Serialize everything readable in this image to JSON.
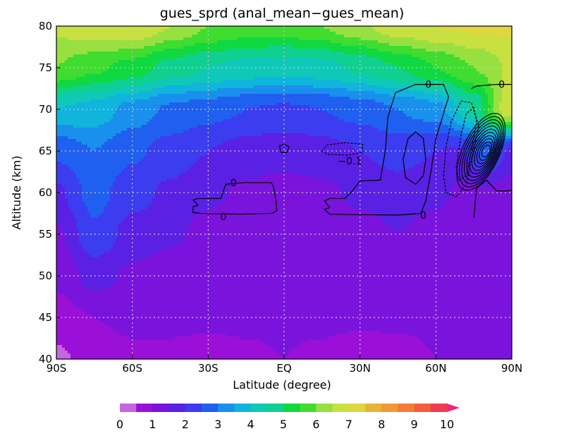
{
  "chart_data": {
    "type": "heatmap",
    "title": "gues_sprd (anal_mean−gues_mean)",
    "xlabel": "Latitude (degree)",
    "ylabel": "Altitude (km)",
    "xlim": [
      -90,
      90
    ],
    "ylim": [
      40,
      80
    ],
    "x_ticks": [
      -90,
      -60,
      -30,
      0,
      30,
      60,
      90
    ],
    "x_tick_labels": [
      "90S",
      "60S",
      "30S",
      "EQ",
      "30N",
      "60N",
      "90N"
    ],
    "y_ticks": [
      40,
      45,
      50,
      55,
      60,
      65,
      70,
      75,
      80
    ],
    "y_tick_labels": [
      "40",
      "45",
      "50",
      "55",
      "60",
      "65",
      "70",
      "75",
      "80"
    ],
    "grid": true,
    "colorbar": {
      "levels": [
        0,
        0.5,
        1,
        1.5,
        2,
        2.5,
        3,
        3.5,
        4,
        4.5,
        5,
        5.5,
        6,
        6.5,
        7,
        7.5,
        8,
        8.5,
        9,
        9.5,
        10
      ],
      "tick_labels": [
        "0",
        "1",
        "2",
        "3",
        "4",
        "5",
        "6",
        "7",
        "8",
        "9",
        "10"
      ],
      "colors": [
        "#c466e0",
        "#9a10d8",
        "#7a14dc",
        "#5a20e4",
        "#3c3cf0",
        "#2060f0",
        "#1890ec",
        "#10b4dc",
        "#10c8b8",
        "#10d090",
        "#10d840",
        "#40dc30",
        "#98e040",
        "#c8e040",
        "#e0d640",
        "#e8b438",
        "#f09838",
        "#f47c34",
        "#f45c3c",
        "#f03c50",
        "#f02878"
      ],
      "extend": "max",
      "placement": "bottom"
    },
    "field_lat": [
      -90,
      -75,
      -60,
      -45,
      -30,
      -15,
      0,
      15,
      30,
      45,
      60,
      75,
      90
    ],
    "field_alt": [
      40,
      45,
      50,
      55,
      60,
      65,
      70,
      75,
      80
    ],
    "field_values": [
      [
        0.4,
        0.7,
        0.9,
        0.9,
        0.8,
        0.9,
        1.0,
        0.9,
        0.7,
        0.8,
        1.0,
        1.1,
        1.1
      ],
      [
        0.8,
        1.0,
        1.1,
        1.1,
        1.1,
        1.1,
        1.1,
        1.1,
        1.1,
        1.1,
        1.1,
        1.1,
        1.0
      ],
      [
        1.1,
        1.7,
        1.4,
        1.2,
        1.1,
        1.0,
        1.0,
        1.0,
        1.1,
        1.3,
        1.2,
        1.1,
        1.0
      ],
      [
        1.4,
        2.4,
        1.8,
        1.6,
        1.3,
        1.1,
        1.0,
        1.1,
        1.3,
        1.5,
        1.3,
        1.1,
        1.0
      ],
      [
        1.9,
        2.7,
        2.2,
        1.9,
        1.6,
        1.4,
        1.3,
        1.4,
        1.6,
        1.8,
        1.6,
        1.3,
        1.2
      ],
      [
        2.6,
        3.0,
        2.6,
        2.3,
        2.0,
        1.8,
        1.7,
        1.8,
        2.0,
        2.2,
        2.0,
        1.8,
        1.7
      ],
      [
        4.0,
        3.8,
        3.3,
        2.9,
        2.7,
        2.5,
        2.4,
        2.5,
        2.7,
        3.0,
        3.3,
        4.5,
        7.0
      ],
      [
        6.0,
        5.6,
        5.3,
        4.8,
        4.5,
        4.3,
        4.2,
        4.3,
        4.6,
        5.0,
        5.5,
        6.0,
        6.6
      ],
      [
        6.6,
        6.9,
        7.0,
        6.5,
        6.0,
        5.8,
        5.8,
        6.0,
        6.4,
        6.8,
        7.0,
        7.1,
        7.1
      ]
    ],
    "contour_labels": [
      {
        "text": "0",
        "lat": -20,
        "alt": 61.2
      },
      {
        "text": "0",
        "lat": -24,
        "alt": 57.1
      },
      {
        "text": "0",
        "lat": 55,
        "alt": 57.3
      },
      {
        "text": "0",
        "lat": 57,
        "alt": 73.0
      },
      {
        "text": "0",
        "lat": 86,
        "alt": 73.0
      },
      {
        "text": "−0.1",
        "lat": 26,
        "alt": 63.8
      }
    ],
    "contours": [
      {
        "level": "0",
        "style": "solid",
        "path": [
          [
            -36,
            59.1
          ],
          [
            -34,
            59.3
          ],
          [
            -25,
            59.3
          ],
          [
            -24,
            60.2
          ],
          [
            -23,
            61.0
          ],
          [
            -16,
            61.2
          ],
          [
            -5,
            61.2
          ],
          [
            -4,
            60.5
          ],
          [
            -3,
            58.5
          ],
          [
            -3,
            57.8
          ],
          [
            -5,
            57.5
          ],
          [
            -17,
            57.4
          ],
          [
            -33,
            57.5
          ],
          [
            -36,
            57.6
          ],
          [
            -36,
            58.3
          ],
          [
            -34,
            58.5
          ],
          [
            -36,
            59.1
          ]
        ]
      },
      {
        "level": "0",
        "style": "solid",
        "path": [
          [
            18,
            58.2
          ],
          [
            16,
            59.0
          ],
          [
            18,
            59.3
          ],
          [
            24,
            59.3
          ],
          [
            27,
            60.2
          ],
          [
            30,
            61.4
          ],
          [
            38,
            61.5
          ],
          [
            40,
            65.0
          ],
          [
            41,
            69.0
          ],
          [
            44,
            72.0
          ],
          [
            52,
            73.0
          ],
          [
            63,
            73.0
          ],
          [
            65,
            71.5
          ],
          [
            63,
            69.5
          ],
          [
            60,
            66.5
          ],
          [
            58,
            62.5
          ],
          [
            56,
            59.0
          ],
          [
            54,
            57.5
          ],
          [
            45,
            57.3
          ],
          [
            18,
            57.4
          ],
          [
            16,
            58.0
          ],
          [
            18,
            58.2
          ]
        ]
      },
      {
        "level": "0",
        "style": "solid",
        "path": [
          [
            -2,
            65.6
          ],
          [
            0,
            65.8
          ],
          [
            2,
            65.5
          ],
          [
            1,
            64.8
          ],
          [
            -1,
            64.8
          ],
          [
            -2,
            65.6
          ]
        ]
      },
      {
        "level": "0",
        "style": "solid",
        "path": [
          [
            47,
            64.0
          ],
          [
            49,
            66.5
          ],
          [
            52,
            67.3
          ],
          [
            55,
            66.5
          ],
          [
            56,
            64.0
          ],
          [
            55,
            62.0
          ],
          [
            52,
            61.0
          ],
          [
            48,
            61.8
          ],
          [
            47,
            64.0
          ]
        ]
      },
      {
        "level": "-0.1",
        "style": "dashed",
        "path": [
          [
            15,
            65.0
          ],
          [
            17,
            65.7
          ],
          [
            24,
            66.0
          ],
          [
            31,
            65.8
          ],
          [
            31,
            64.8
          ],
          [
            25,
            64.5
          ],
          [
            17,
            64.6
          ],
          [
            15,
            65.0
          ]
        ]
      },
      {
        "level": "-0.1",
        "style": "dashed",
        "path": [
          [
            63,
            62.0
          ],
          [
            64,
            65.5
          ],
          [
            66,
            68.5
          ],
          [
            70,
            71.0
          ],
          [
            74,
            70.8
          ],
          [
            77,
            68.0
          ],
          [
            74,
            64.0
          ],
          [
            72,
            61.0
          ],
          [
            68,
            59.5
          ],
          [
            64,
            60.0
          ],
          [
            63,
            62.0
          ]
        ]
      },
      {
        "level": "-0.1",
        "style": "dashed",
        "path": [
          [
            68,
            63.0
          ],
          [
            70,
            67.0
          ],
          [
            72,
            69.5
          ],
          [
            75,
            70.2
          ],
          [
            76,
            68.5
          ],
          [
            74,
            65.0
          ],
          [
            72,
            62.0
          ],
          [
            69,
            61.5
          ],
          [
            68,
            63.0
          ]
        ]
      },
      {
        "level": "0",
        "style": "solid",
        "path": [
          [
            74,
            72.5
          ],
          [
            76,
            72.8
          ],
          [
            84,
            73.0
          ],
          [
            90,
            73.0
          ]
        ]
      },
      {
        "level": "0",
        "style": "solid",
        "path": [
          [
            75,
            57.0
          ],
          [
            76,
            60.5
          ],
          [
            80,
            61.5
          ],
          [
            84,
            60.2
          ],
          [
            88,
            60.2
          ],
          [
            90,
            60.3
          ]
        ]
      }
    ],
    "max_center": {
      "lat": 80,
      "alt": 65,
      "rings": 11
    }
  }
}
